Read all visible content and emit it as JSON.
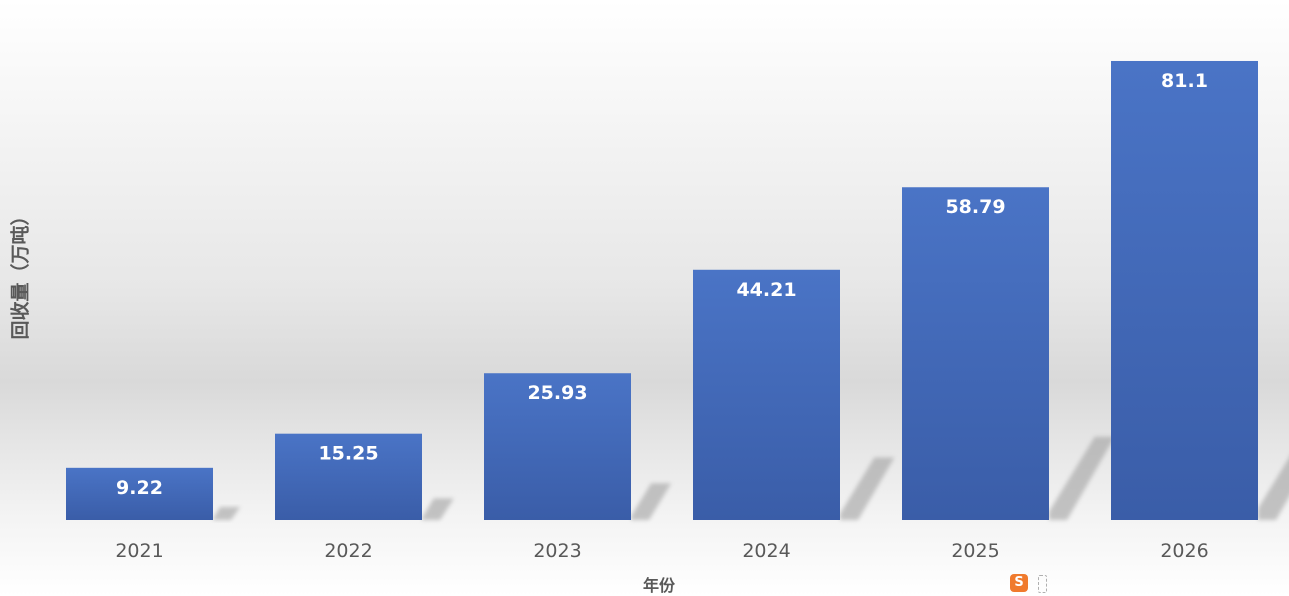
{
  "chart_data": {
    "type": "bar",
    "title": "",
    "xlabel": "年份",
    "ylabel": "回收量（万吨）",
    "categories": [
      "2021",
      "2022",
      "2023",
      "2024",
      "2025",
      "2026"
    ],
    "values": [
      9.22,
      15.25,
      25.93,
      44.21,
      58.79,
      81.1
    ],
    "data_labels": [
      "9.22",
      "15.25",
      "25.93",
      "44.21",
      "58.79",
      "81.1"
    ],
    "ylim": [
      0,
      90
    ],
    "grid": false,
    "legend": "none",
    "colors": {
      "bar_top": "#4a74c6",
      "bar_bottom": "#3a5da8",
      "label": "#ffffff",
      "tick": "#595959",
      "shadow": "#9a9a9a"
    }
  },
  "tray": {
    "icons": [
      "sogou-input-icon",
      "window-toggle-icon"
    ]
  }
}
